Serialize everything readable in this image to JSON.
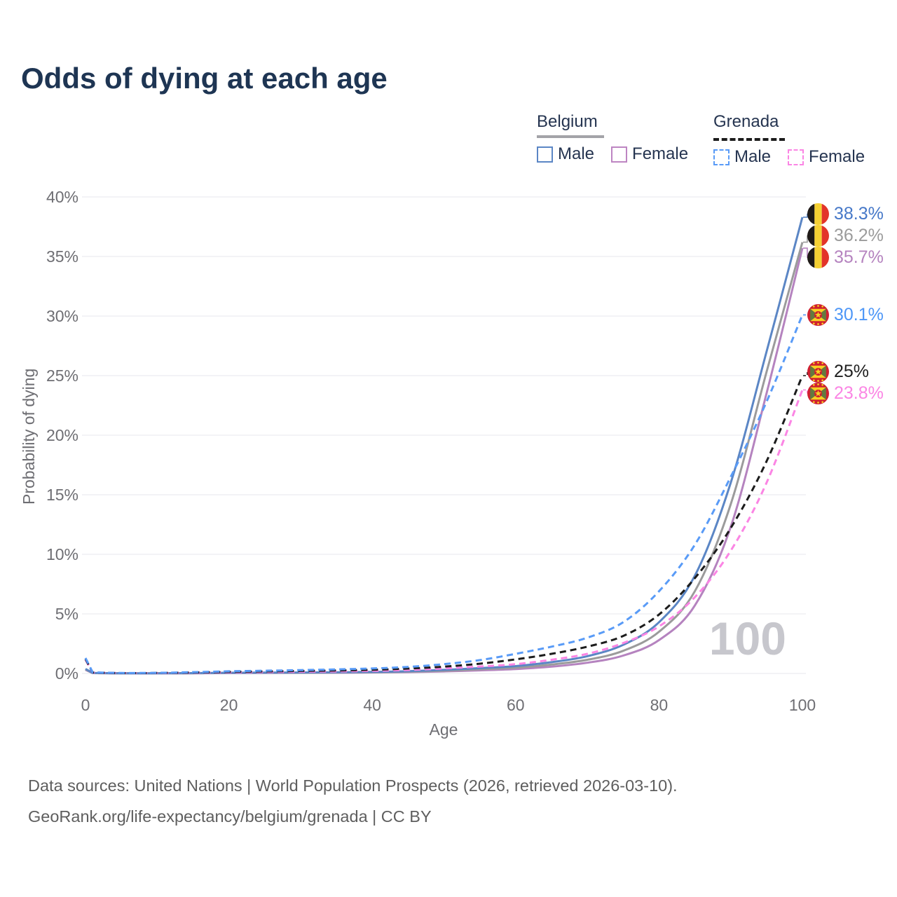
{
  "title": "Odds of dying at each age",
  "watermark": "100",
  "legend": {
    "groups": [
      {
        "country": "Belgium",
        "underline_color": "#a3a3a8",
        "underline_style": "solid",
        "items": [
          {
            "label": "Male",
            "color": "#5b86c5",
            "dashed": false
          },
          {
            "label": "Female",
            "color": "#bd85c2",
            "dashed": false
          }
        ]
      },
      {
        "country": "Grenada",
        "underline_color": "#1c1c1c",
        "underline_style": "dashed",
        "items": [
          {
            "label": "Male",
            "color": "#599bf7",
            "dashed": true
          },
          {
            "label": "Female",
            "color": "#fb85e4",
            "dashed": true
          }
        ]
      }
    ]
  },
  "footer": {
    "line1": "Data sources: United Nations | World Population Prospects (2026, retrieved 2026-03-10).",
    "line2": "GeoRank.org/life-expectancy/belgium/grenada | CC BY"
  },
  "chart_data": {
    "type": "line",
    "title": "Odds of dying at each age",
    "xlabel": "Age",
    "ylabel": "Probability of dying",
    "xlim": [
      0,
      100
    ],
    "ylim": [
      0,
      40
    ],
    "x_ticks": [
      0,
      20,
      40,
      60,
      80,
      100
    ],
    "y_ticks": [
      0,
      5,
      10,
      15,
      20,
      25,
      30,
      35,
      40
    ],
    "y_tick_suffix": "%",
    "grid": "horizontal",
    "legend_position": "top-right",
    "x": [
      0,
      1,
      5,
      10,
      15,
      20,
      25,
      30,
      35,
      40,
      45,
      50,
      55,
      60,
      65,
      70,
      75,
      80,
      85,
      90,
      95,
      100
    ],
    "series": [
      {
        "name": "Belgium Female",
        "color": "#b583bf",
        "dashed": false,
        "flag": "belgium",
        "end_label": "35.7%",
        "end_label_color": "#b583bf",
        "end_value": 35.7,
        "values": [
          0.3,
          0.03,
          0.01,
          0.01,
          0.02,
          0.03,
          0.04,
          0.05,
          0.06,
          0.08,
          0.11,
          0.17,
          0.26,
          0.37,
          0.57,
          0.9,
          1.5,
          2.8,
          5.7,
          12.3,
          23.5,
          35.7
        ]
      },
      {
        "name": "Belgium Total",
        "color": "#9b9b9b",
        "dashed": false,
        "flag": "belgium",
        "end_label": "36.2%",
        "end_label_color": "#9b9b9b",
        "end_value": 36.2,
        "values": [
          0.34,
          0.03,
          0.01,
          0.01,
          0.02,
          0.04,
          0.05,
          0.06,
          0.08,
          0.1,
          0.15,
          0.23,
          0.35,
          0.48,
          0.75,
          1.15,
          1.9,
          3.5,
          6.9,
          14.2,
          25.3,
          36.2
        ]
      },
      {
        "name": "Belgium Male",
        "color": "#5b86c5",
        "dashed": false,
        "flag": "belgium",
        "end_label": "38.3%",
        "end_label_color": "#4678c8",
        "end_value": 38.3,
        "values": [
          0.38,
          0.04,
          0.01,
          0.01,
          0.03,
          0.06,
          0.07,
          0.08,
          0.1,
          0.13,
          0.19,
          0.3,
          0.45,
          0.62,
          0.95,
          1.45,
          2.4,
          4.3,
          8.2,
          16.0,
          27.0,
          38.3
        ]
      },
      {
        "name": "Grenada Female",
        "color": "#fb85e4",
        "dashed": true,
        "flag": "grenada",
        "end_label": "23.8%",
        "end_label_color": "#fb85e4",
        "end_value": 23.8,
        "values": [
          1.15,
          0.07,
          0.03,
          0.03,
          0.06,
          0.09,
          0.11,
          0.14,
          0.17,
          0.22,
          0.29,
          0.42,
          0.58,
          0.78,
          1.15,
          1.65,
          2.55,
          3.95,
          6.4,
          10.3,
          16.0,
          23.8
        ]
      },
      {
        "name": "Grenada Total",
        "color": "#1c1c1c",
        "dashed": true,
        "flag": "grenada",
        "end_label": "25%",
        "end_label_color": "#1f1f1f",
        "end_value": 25.0,
        "values": [
          1.22,
          0.08,
          0.03,
          0.04,
          0.08,
          0.13,
          0.17,
          0.21,
          0.25,
          0.31,
          0.41,
          0.57,
          0.82,
          1.18,
          1.65,
          2.25,
          3.15,
          4.95,
          8.0,
          12.2,
          17.8,
          25.0
        ]
      },
      {
        "name": "Grenada Male",
        "color": "#599bf7",
        "dashed": true,
        "flag": "grenada",
        "end_label": "30.1%",
        "end_label_color": "#4d96f7",
        "end_value": 30.1,
        "values": [
          1.3,
          0.09,
          0.04,
          0.05,
          0.11,
          0.18,
          0.23,
          0.28,
          0.34,
          0.42,
          0.55,
          0.78,
          1.12,
          1.65,
          2.25,
          3.0,
          4.3,
          6.9,
          10.8,
          16.5,
          22.8,
          30.1
        ]
      }
    ],
    "flag_colors": {
      "belgium": {
        "black": "#1f1a17",
        "yellow": "#f5d033",
        "red": "#e2342a"
      },
      "grenada": {
        "red": "#cf2030",
        "yellow": "#f7d021",
        "green": "#64793f"
      }
    },
    "grid_color": "#ececf0",
    "tick_color": "#6e6e73"
  }
}
